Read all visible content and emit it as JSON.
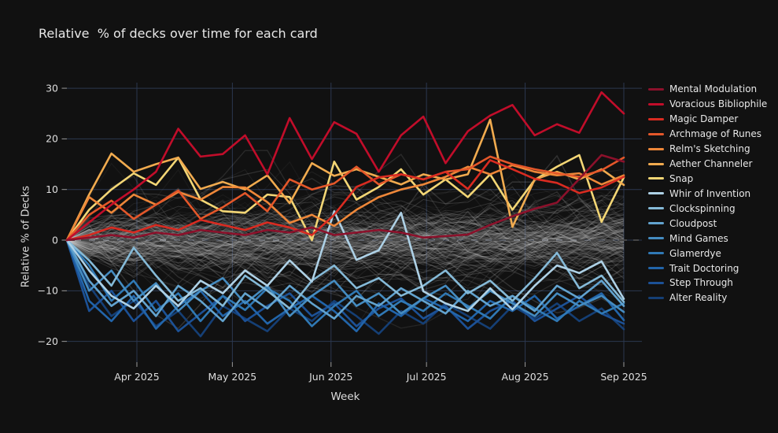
{
  "chart": {
    "title": "Relative  % of decks over time for each card",
    "x_title": "Week",
    "y_title": "Relative % of Decks",
    "colors": {
      "background": "#111111",
      "text": "#e8e8e8",
      "grid": "#2c3850",
      "tick_mark": "#9a9a9a",
      "zero_dash": "#454545",
      "background_lines": "#c9c9c9"
    }
  },
  "chart_data": {
    "type": "line",
    "title": "Relative  % of decks over time for each card",
    "xlabel": "Week",
    "ylabel": "Relative % of Decks",
    "x": [
      "2025-03-10",
      "2025-03-17",
      "2025-03-24",
      "2025-03-31",
      "2025-04-07",
      "2025-04-14",
      "2025-04-21",
      "2025-04-28",
      "2025-05-05",
      "2025-05-12",
      "2025-05-19",
      "2025-05-26",
      "2025-06-02",
      "2025-06-09",
      "2025-06-16",
      "2025-06-23",
      "2025-06-30",
      "2025-07-07",
      "2025-07-14",
      "2025-07-21",
      "2025-07-28",
      "2025-08-04",
      "2025-08-11",
      "2025-08-18",
      "2025-08-25",
      "2025-09-01"
    ],
    "x_ticks": [
      {
        "label": "Apr 2025",
        "date": "2025-04-01"
      },
      {
        "label": "May 2025",
        "date": "2025-05-01"
      },
      {
        "label": "Jun 2025",
        "date": "2025-06-01"
      },
      {
        "label": "Jul 2025",
        "date": "2025-07-01"
      },
      {
        "label": "Aug 2025",
        "date": "2025-08-01"
      },
      {
        "label": "Sep 2025",
        "date": "2025-09-01"
      }
    ],
    "y_ticks": [
      30,
      20,
      10,
      0,
      -10,
      -20
    ],
    "y_tick_labels": [
      "30",
      "20",
      "10",
      "0",
      "−10",
      "−20"
    ],
    "ylim": [
      -24.1,
      31.1
    ],
    "grid": true,
    "legend_position": "right",
    "zero_line": {
      "y": 0,
      "style": "dashed"
    },
    "series": [
      {
        "name": "Mental Modulation",
        "color": "#8c112b",
        "values": [
          0,
          0.5,
          1,
          0.5,
          1.5,
          1,
          2,
          1.5,
          1,
          2,
          1.5,
          2.5,
          1,
          1.5,
          2,
          1.5,
          0.5,
          0.8,
          1.1,
          3,
          4.7,
          6.2,
          7.4,
          12.1,
          16.8,
          15.5
        ]
      },
      {
        "name": "Voracious Bibliophile",
        "color": "#c10d2a",
        "values": [
          0,
          3.5,
          7,
          10,
          13.5,
          22,
          16.5,
          17,
          20.7,
          13,
          24.1,
          16,
          23.3,
          21,
          13.5,
          20.7,
          24.4,
          15.2,
          21.5,
          24.6,
          26.7,
          20.7,
          22.9,
          21.2,
          29.2,
          25
        ]
      },
      {
        "name": "Magic Damper",
        "color": "#d92b21",
        "values": [
          0,
          1,
          2.5,
          1.5,
          3,
          2,
          4,
          3,
          2,
          3.5,
          2.5,
          1,
          5,
          10.5,
          12.4,
          13,
          12,
          13.5,
          10.1,
          15.8,
          14,
          12.1,
          11.3,
          9.3,
          10.4,
          12.5
        ]
      },
      {
        "name": "Archmage of Runes",
        "color": "#e4572a",
        "values": [
          0,
          5,
          7.8,
          4.2,
          7,
          9.8,
          4.2,
          6.5,
          9.3,
          5.7,
          12,
          10,
          11.2,
          14.5,
          11,
          13,
          12,
          13.5,
          14,
          16.5,
          15,
          14,
          13.2,
          12.5,
          13.8,
          16.3
        ]
      },
      {
        "name": "Relm's Sketching",
        "color": "#ee8739",
        "values": [
          0,
          8.5,
          5.4,
          9,
          7,
          9.5,
          8,
          10.5,
          10.4,
          7.5,
          3.4,
          5,
          2.8,
          6,
          8.5,
          10,
          11,
          12.5,
          14.5,
          13,
          14.8,
          13.5,
          12.8,
          13.2,
          11,
          12.8
        ]
      },
      {
        "name": "Aether Channeler",
        "color": "#f1ab4f",
        "values": [
          0,
          9,
          17.1,
          13.5,
          15,
          16.3,
          10.1,
          11.5,
          10,
          12.8,
          7.3,
          15.2,
          12.7,
          14,
          12.5,
          11,
          13,
          12,
          13,
          23.8,
          2.6,
          12,
          13.5,
          12,
          14,
          10.9
        ]
      },
      {
        "name": "Snap",
        "color": "#f3d675",
        "values": [
          0,
          6,
          10,
          13.2,
          10.9,
          16.3,
          8,
          5.7,
          5.4,
          9,
          8.5,
          0,
          15.5,
          8,
          10.5,
          14,
          9,
          12,
          8.5,
          13,
          6,
          11.9,
          14.5,
          16.8,
          3.6,
          12.4
        ]
      },
      {
        "name": "Whir of Invention",
        "color": "#aed1e6",
        "values": [
          0,
          -6,
          -11,
          -13.5,
          -9,
          -13,
          -8,
          -10.5,
          -6,
          -9,
          -4,
          -8.2,
          5.7,
          -3.9,
          -2,
          5.4,
          -10.1,
          -12.5,
          -14,
          -9.5,
          -13.7,
          -9,
          -5,
          -6.5,
          -4.2,
          -11.6
        ]
      },
      {
        "name": "Clockspinning",
        "color": "#85bad8",
        "values": [
          0,
          -4,
          -9,
          -1.5,
          -7,
          -12,
          -9.5,
          -13,
          -7,
          -10,
          -13.5,
          -8,
          -5,
          -9.5,
          -7.5,
          -11,
          -9,
          -6,
          -10.5,
          -8,
          -12,
          -7.5,
          -2.5,
          -9.5,
          -7,
          -12.2
        ]
      },
      {
        "name": "Cloudpost",
        "color": "#62a3cf",
        "values": [
          0,
          -8,
          -13,
          -10,
          -15,
          -9,
          -12,
          -16,
          -10.5,
          -13.5,
          -9,
          -12.5,
          -15.5,
          -11,
          -13,
          -9.5,
          -12,
          -14.5,
          -10,
          -13,
          -11,
          -14,
          -9,
          -11.5,
          -8,
          -13
        ]
      },
      {
        "name": "Mind Games",
        "color": "#458cc1",
        "values": [
          0,
          -10,
          -6,
          -12,
          -8.5,
          -14,
          -10,
          -7.5,
          -12.5,
          -9,
          -15,
          -11,
          -8,
          -13,
          -10.5,
          -14.5,
          -11.5,
          -9,
          -13.5,
          -10,
          -12.5,
          -15,
          -10.5,
          -13,
          -11,
          -14.2
        ]
      },
      {
        "name": "Glamerdye",
        "color": "#3079b5",
        "values": [
          0,
          -5,
          -12,
          -8,
          -14,
          -10.5,
          -16,
          -11,
          -13.8,
          -9.5,
          -12,
          -17,
          -13,
          -10,
          -15,
          -12,
          -14,
          -10.5,
          -13,
          -15.5,
          -11,
          -13.5,
          -16,
          -12,
          -14.5,
          -12.5
        ]
      },
      {
        "name": "Trait Doctoring",
        "color": "#2265aa",
        "values": [
          0,
          -12,
          -16,
          -11,
          -17.5,
          -13,
          -10,
          -15,
          -12,
          -16.5,
          -13.5,
          -11,
          -14,
          -18,
          -12.5,
          -15,
          -11.5,
          -13.5,
          -16,
          -12,
          -14,
          -11,
          -15.5,
          -13,
          -10.5,
          -15.8
        ]
      },
      {
        "name": "Step Through",
        "color": "#1c5196",
        "values": [
          0,
          -14,
          -10,
          -16,
          -12,
          -18,
          -14.5,
          -11,
          -16,
          -13,
          -10.5,
          -15,
          -12.5,
          -17,
          -13.5,
          -11.5,
          -15.5,
          -13,
          -17.5,
          -14,
          -12,
          -16,
          -13.5,
          -11,
          -14.5,
          -16.5
        ]
      },
      {
        "name": "Alter Reality",
        "color": "#153f75",
        "values": [
          0,
          -9,
          -15,
          -12,
          -17,
          -14,
          -19,
          -13,
          -15.5,
          -18,
          -13.5,
          -16,
          -12,
          -15,
          -18.5,
          -14,
          -16.5,
          -12.5,
          -15,
          -17.5,
          -13,
          -15.5,
          -12.5,
          -16,
          -13.5,
          -17.6
        ]
      }
    ],
    "background_series": {
      "description": "all other cards (unlabeled, faint gray)",
      "count": 170,
      "seed": 11,
      "value_range": [
        -20,
        18
      ],
      "opacity_range": [
        0.05,
        0.2
      ]
    }
  }
}
